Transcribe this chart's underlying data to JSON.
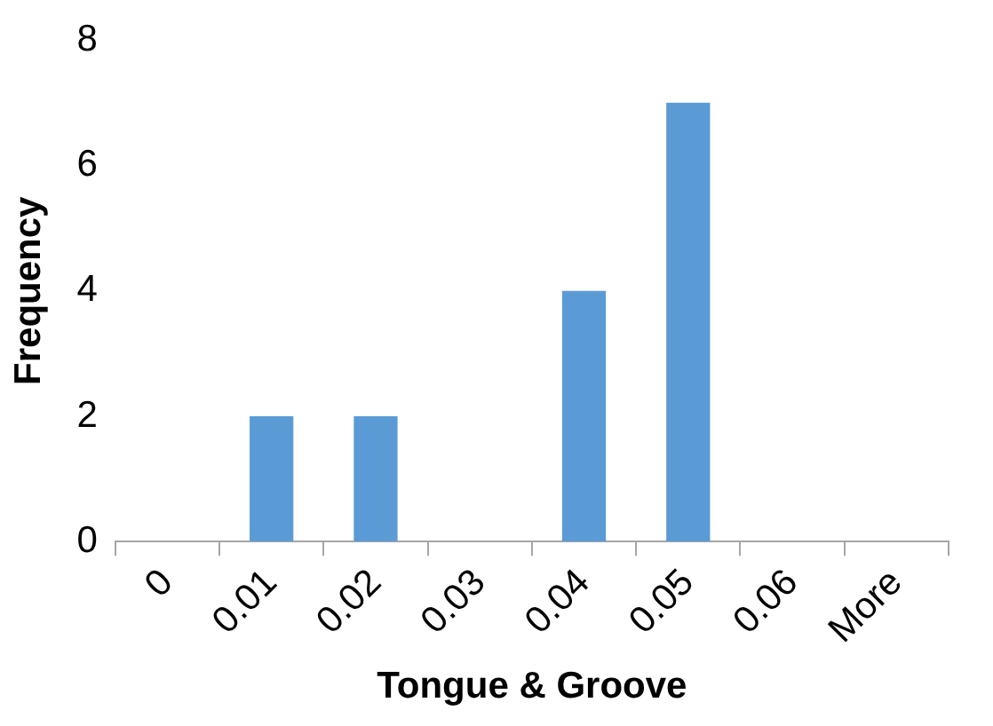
{
  "chart_data": {
    "type": "bar",
    "xlabel": "Tongue & Groove",
    "ylabel": "Frequency",
    "categories": [
      "0",
      "0.01",
      "0.02",
      "0.03",
      "0.04",
      "0.05",
      "0.06",
      "More"
    ],
    "values": [
      0,
      2,
      2,
      0,
      4,
      7,
      0,
      0
    ],
    "color": "#5b9bd5",
    "ylim": [
      0,
      8
    ],
    "yticks": [
      0,
      2,
      4,
      6,
      8
    ],
    "grid": false,
    "legend": false
  }
}
